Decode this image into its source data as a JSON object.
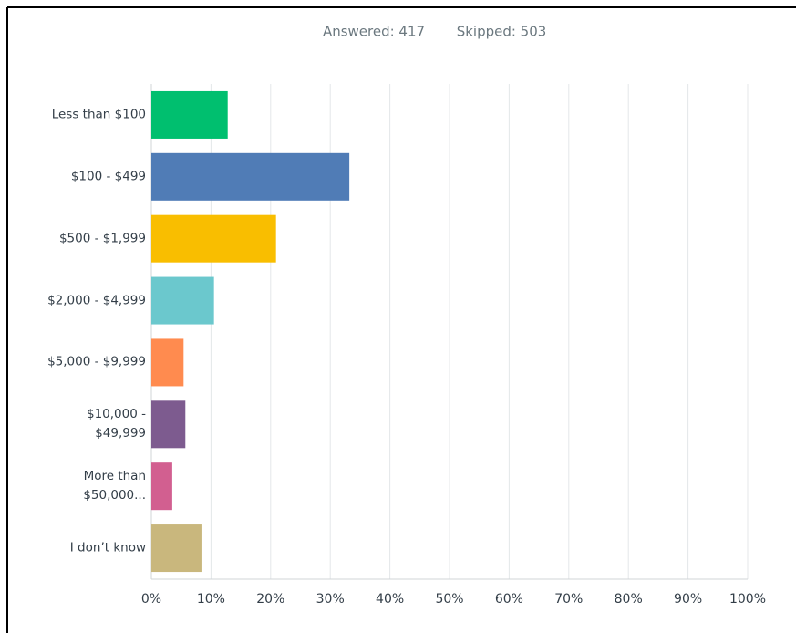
{
  "chart_data": {
    "type": "hbar",
    "subtitle": [
      "Answered: 417",
      "Skipped: 503"
    ],
    "categories": [
      "Less than $100",
      "$100 - $499",
      "$500 - $1,999",
      "$2,000 - $4,999",
      "$5,000 - $9,999",
      "$10,000 -\n$49,999",
      "More than\n$50,000...",
      "I don’t know"
    ],
    "values": [
      12.8,
      33.2,
      20.9,
      10.5,
      5.4,
      5.7,
      3.5,
      8.4
    ],
    "colors": [
      "#00bf6f",
      "#507cb6",
      "#f9be00",
      "#6bc8cd",
      "#ff8b4f",
      "#7d5b8f",
      "#d25f90",
      "#c9b77d"
    ],
    "xlim": [
      0,
      100
    ],
    "xticks": [
      {
        "value": 0,
        "label": "0%"
      },
      {
        "value": 10,
        "label": "10%"
      },
      {
        "value": 20,
        "label": "20%"
      },
      {
        "value": 30,
        "label": "30%"
      },
      {
        "value": 40,
        "label": "40%"
      },
      {
        "value": 50,
        "label": "50%"
      },
      {
        "value": 60,
        "label": "60%"
      },
      {
        "value": 70,
        "label": "70%"
      },
      {
        "value": 80,
        "label": "80%"
      },
      {
        "value": 90,
        "label": "90%"
      },
      {
        "value": 100,
        "label": "100%"
      }
    ],
    "grid": true
  }
}
